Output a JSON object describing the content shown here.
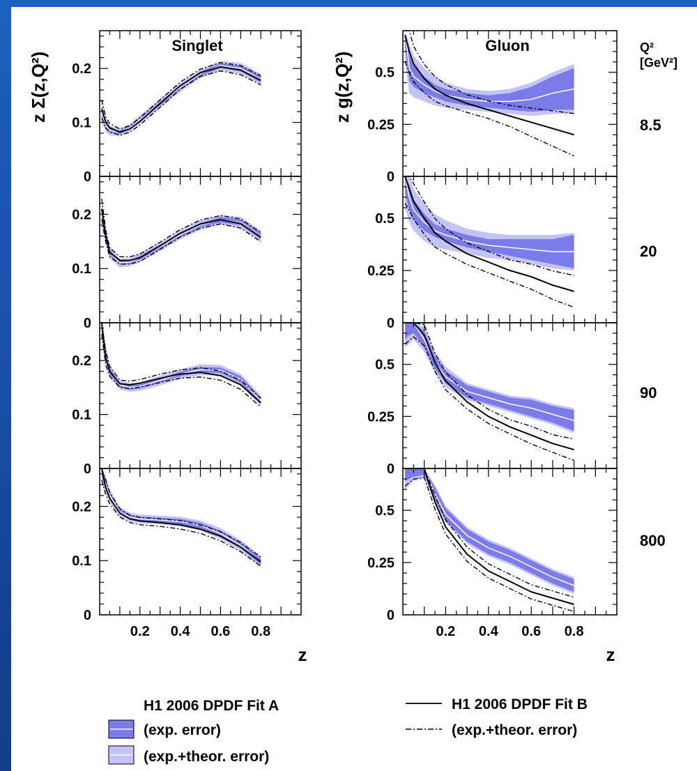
{
  "colors": {
    "slide_background": "#1a4fa8",
    "band_exp": "#7b7bea",
    "band_exp_theor": "#c3c3f6",
    "central_line": "#ffffff",
    "fit_b": "#000000"
  },
  "chart_data": {
    "type": "line",
    "layout": "4x2 panel grid",
    "x_label": "z",
    "x_range": [
      0,
      1
    ],
    "x_ticks": [
      "0.2",
      "0.4",
      "0.6",
      "0.8"
    ],
    "grid": false,
    "columns": [
      {
        "title": "Singlet",
        "ylabel": "z Σ(z,Q²)",
        "ylim": [
          0,
          0.27
        ],
        "y_ticks": [
          "0",
          "0.1",
          "0.2"
        ],
        "y_tick_values": [
          0,
          0.1,
          0.2
        ]
      },
      {
        "title": "Gluon",
        "ylabel": "z g(z,Q²)",
        "ylim": [
          0,
          0.7
        ],
        "y_ticks": [
          "0",
          "0.25",
          "0.5"
        ],
        "y_tick_values": [
          0,
          0.25,
          0.5
        ]
      }
    ],
    "q2_header": {
      "symbol": "Q²",
      "unit": "[GeV²]"
    },
    "q2_values": [
      "8.5",
      "20",
      "90",
      "800"
    ],
    "x": [
      0.01,
      0.03,
      0.05,
      0.1,
      0.15,
      0.2,
      0.3,
      0.4,
      0.5,
      0.6,
      0.7,
      0.8
    ],
    "singlet": {
      "fit_a": [
        [
          0.12,
          0.095,
          0.085,
          0.082,
          0.09,
          0.105,
          0.135,
          0.165,
          0.19,
          0.205,
          0.2,
          0.18
        ],
        [
          0.2,
          0.16,
          0.13,
          0.11,
          0.112,
          0.12,
          0.14,
          0.162,
          0.18,
          0.19,
          0.185,
          0.16
        ],
        [
          0.27,
          0.21,
          0.18,
          0.155,
          0.15,
          0.152,
          0.163,
          0.175,
          0.183,
          0.182,
          0.165,
          0.125
        ],
        [
          0.27,
          0.24,
          0.22,
          0.19,
          0.18,
          0.177,
          0.175,
          0.172,
          0.165,
          0.15,
          0.128,
          0.098
        ]
      ],
      "fit_b": [
        [
          0.125,
          0.1,
          0.09,
          0.082,
          0.088,
          0.102,
          0.135,
          0.168,
          0.192,
          0.203,
          0.197,
          0.178
        ],
        [
          0.21,
          0.16,
          0.13,
          0.115,
          0.115,
          0.12,
          0.142,
          0.165,
          0.182,
          0.19,
          0.183,
          0.158
        ],
        [
          0.27,
          0.205,
          0.18,
          0.157,
          0.155,
          0.158,
          0.167,
          0.175,
          0.178,
          0.172,
          0.155,
          0.122
        ],
        [
          0.27,
          0.235,
          0.215,
          0.188,
          0.177,
          0.173,
          0.17,
          0.166,
          0.158,
          0.145,
          0.125,
          0.098
        ]
      ],
      "exp_error_half_width": [
        [
          0.01,
          0.006,
          0.004,
          0.003,
          0.003,
          0.003,
          0.003,
          0.004,
          0.004,
          0.004,
          0.005,
          0.006
        ],
        [
          0.012,
          0.007,
          0.005,
          0.003,
          0.003,
          0.003,
          0.004,
          0.004,
          0.004,
          0.005,
          0.005,
          0.006
        ],
        [
          0.014,
          0.008,
          0.006,
          0.004,
          0.004,
          0.004,
          0.004,
          0.004,
          0.005,
          0.005,
          0.006,
          0.006
        ],
        [
          0.014,
          0.009,
          0.006,
          0.004,
          0.004,
          0.004,
          0.004,
          0.005,
          0.005,
          0.005,
          0.005,
          0.006
        ]
      ],
      "exp_theor_error_half_width": [
        [
          0.02,
          0.012,
          0.009,
          0.007,
          0.007,
          0.008,
          0.008,
          0.008,
          0.008,
          0.009,
          0.01,
          0.01
        ],
        [
          0.022,
          0.013,
          0.01,
          0.008,
          0.008,
          0.008,
          0.008,
          0.008,
          0.009,
          0.009,
          0.01,
          0.01
        ],
        [
          0.025,
          0.015,
          0.011,
          0.008,
          0.008,
          0.008,
          0.009,
          0.009,
          0.01,
          0.01,
          0.01,
          0.01
        ],
        [
          0.025,
          0.016,
          0.012,
          0.009,
          0.008,
          0.008,
          0.008,
          0.009,
          0.009,
          0.01,
          0.01,
          0.01
        ]
      ]
    },
    "gluon": {
      "fit_a": [
        [
          0.7,
          0.52,
          0.48,
          0.44,
          0.41,
          0.39,
          0.37,
          0.36,
          0.36,
          0.37,
          0.4,
          0.42
        ],
        [
          0.7,
          0.6,
          0.54,
          0.48,
          0.44,
          0.42,
          0.39,
          0.37,
          0.36,
          0.35,
          0.34,
          0.34
        ],
        [
          0.7,
          0.7,
          0.7,
          0.62,
          0.51,
          0.44,
          0.37,
          0.34,
          0.31,
          0.29,
          0.26,
          0.23
        ],
        [
          0.7,
          0.7,
          0.7,
          0.7,
          0.58,
          0.48,
          0.38,
          0.32,
          0.28,
          0.23,
          0.18,
          0.14
        ]
      ],
      "fit_b": [
        [
          0.68,
          0.6,
          0.54,
          0.47,
          0.42,
          0.39,
          0.35,
          0.32,
          0.29,
          0.26,
          0.23,
          0.2
        ],
        [
          0.7,
          0.64,
          0.58,
          0.5,
          0.43,
          0.39,
          0.33,
          0.29,
          0.25,
          0.22,
          0.18,
          0.15
        ],
        [
          0.7,
          0.7,
          0.7,
          0.64,
          0.51,
          0.42,
          0.32,
          0.25,
          0.2,
          0.16,
          0.12,
          0.09
        ],
        [
          0.7,
          0.7,
          0.7,
          0.7,
          0.54,
          0.42,
          0.29,
          0.21,
          0.16,
          0.11,
          0.08,
          0.05
        ]
      ],
      "exp_error_half_width": [
        [
          0.08,
          0.06,
          0.05,
          0.04,
          0.03,
          0.03,
          0.03,
          0.03,
          0.04,
          0.06,
          0.08,
          0.1
        ],
        [
          0.08,
          0.06,
          0.05,
          0.04,
          0.03,
          0.03,
          0.03,
          0.03,
          0.04,
          0.05,
          0.06,
          0.08
        ],
        [
          0.08,
          0.06,
          0.05,
          0.04,
          0.03,
          0.03,
          0.03,
          0.03,
          0.03,
          0.04,
          0.04,
          0.05
        ],
        [
          0.06,
          0.05,
          0.04,
          0.03,
          0.03,
          0.03,
          0.03,
          0.03,
          0.03,
          0.03,
          0.03,
          0.03
        ]
      ],
      "exp_theor_error_half_width": [
        [
          0.15,
          0.12,
          0.1,
          0.08,
          0.07,
          0.06,
          0.05,
          0.05,
          0.06,
          0.08,
          0.1,
          0.12
        ],
        [
          0.15,
          0.12,
          0.1,
          0.09,
          0.08,
          0.07,
          0.06,
          0.06,
          0.06,
          0.07,
          0.08,
          0.09
        ],
        [
          0.12,
          0.1,
          0.08,
          0.06,
          0.05,
          0.05,
          0.04,
          0.04,
          0.04,
          0.05,
          0.05,
          0.06
        ],
        [
          0.1,
          0.08,
          0.06,
          0.05,
          0.04,
          0.04,
          0.04,
          0.04,
          0.04,
          0.04,
          0.04,
          0.04
        ]
      ]
    },
    "legend": {
      "fit_a_title": "H1 2006 DPDF Fit A",
      "exp_error": "(exp. error)",
      "exp_theor_error": "(exp.+theor. error)",
      "fit_b_title": "H1 2006 DPDF Fit B",
      "fit_b_error": "(exp.+theor. error)",
      "placement": "bottom"
    }
  }
}
